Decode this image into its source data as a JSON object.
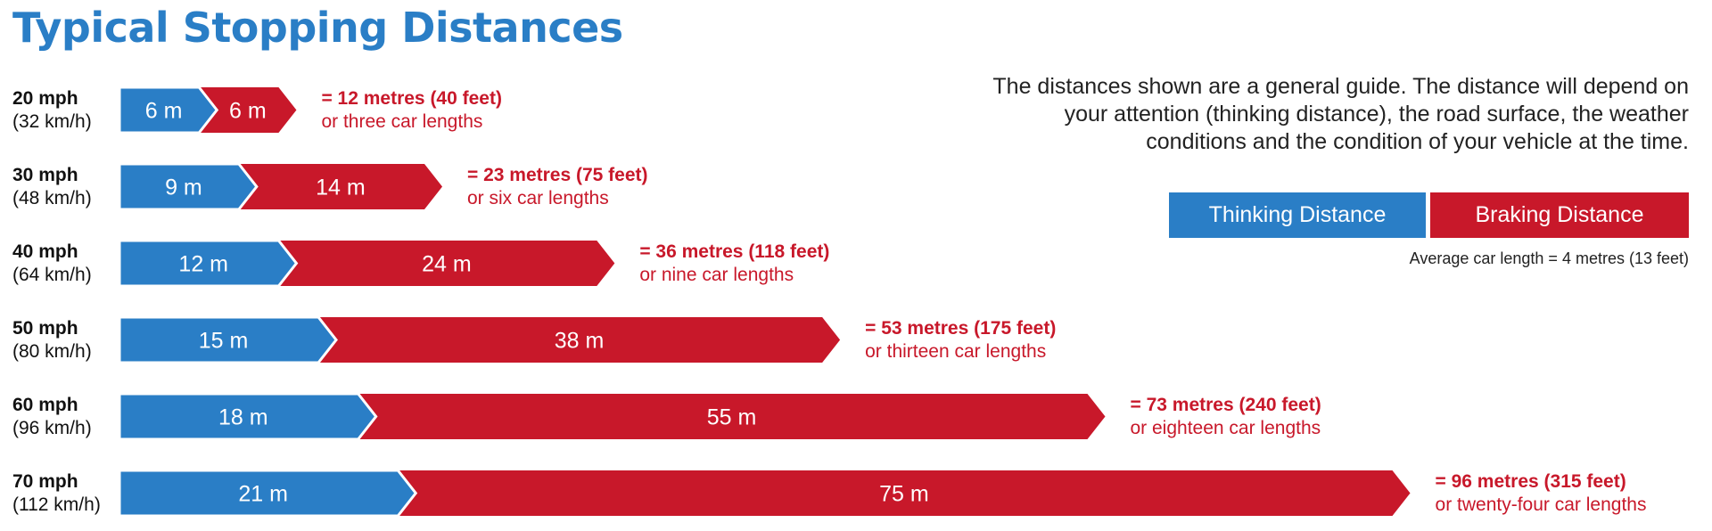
{
  "title": "Typical Stopping Distances",
  "note": "The distances shown are a general guide. The distance will depend on your attention (thinking distance), the road surface, the weather conditions and the condition of your vehicle at the time.",
  "legend": {
    "thinking": "Thinking Distance",
    "braking": "Braking Distance"
  },
  "avg_note": "Average car length = 4 metres (13 feet)",
  "colors": {
    "thinking": "#2a7ec6",
    "braking": "#c8182a",
    "title": "#2a7ec6"
  },
  "chart_data": {
    "type": "bar",
    "orientation": "horizontal",
    "stacked": true,
    "unit": "m",
    "categories": [
      "20 mph",
      "30 mph",
      "40 mph",
      "50 mph",
      "60 mph",
      "70 mph"
    ],
    "category_sublabels": [
      "(32 km/h)",
      "(48 km/h)",
      "(64 km/h)",
      "(80 km/h)",
      "(96 km/h)",
      "(112 km/h)"
    ],
    "series": [
      {
        "name": "Thinking Distance",
        "values": [
          6,
          9,
          12,
          15,
          18,
          21
        ]
      },
      {
        "name": "Braking Distance",
        "values": [
          6,
          14,
          24,
          38,
          55,
          75
        ]
      }
    ],
    "totals": [
      "= 12 metres (40 feet)",
      "= 23 metres (75 feet)",
      "= 36 metres (118 feet)",
      "= 53 metres (175 feet)",
      "= 73 metres (240 feet)",
      "= 96 metres (315 feet)"
    ],
    "total_sublabels": [
      "or three car lengths",
      "or six car lengths",
      "or nine car lengths",
      "or thirteen car lengths",
      "or eighteen car lengths",
      "or twenty-four car lengths"
    ],
    "legend_position": "top-right",
    "grid": false
  }
}
